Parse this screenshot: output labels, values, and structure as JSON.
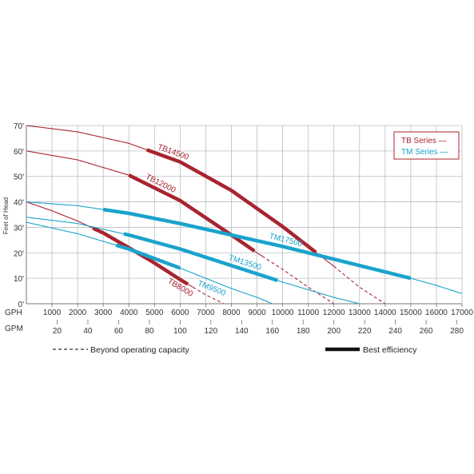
{
  "chart_data": {
    "type": "line",
    "xlabel": "GPH",
    "x2label": "GPM",
    "ylabel": "Feet of Head",
    "xlim": [
      0,
      17000
    ],
    "ylim": [
      0,
      70
    ],
    "x_ticks": [
      1000,
      2000,
      3000,
      4000,
      5000,
      6000,
      7000,
      8000,
      9000,
      10000,
      11000,
      12000,
      13000,
      14000,
      15000,
      16000,
      17000
    ],
    "x_tick_labels": [
      "1000",
      "2000",
      "3000",
      "4000",
      "5000",
      "6000",
      "7000",
      "8000",
      "9000",
      "10000",
      "11000",
      "12000",
      "13000",
      "14000",
      "15000",
      "16000",
      "17000"
    ],
    "gpm_ticks": [
      20,
      40,
      60,
      80,
      100,
      120,
      140,
      160,
      180,
      200,
      220,
      240,
      260,
      280
    ],
    "gpm_tick_labels": [
      "20",
      "40",
      "60",
      "80",
      "100",
      "120",
      "140",
      "160",
      "180",
      "200",
      "220",
      "240",
      "260",
      "280"
    ],
    "y_ticks": [
      0,
      10,
      20,
      30,
      40,
      50,
      60,
      70
    ],
    "y_tick_labels": [
      "0'",
      "10'",
      "20'",
      "30'",
      "40'",
      "50'",
      "60'",
      "70'"
    ],
    "grid": true,
    "legend_position": "top-right",
    "legend": [
      {
        "label": "TB Series —",
        "color": "#a8242f"
      },
      {
        "label": "TM Series —",
        "color": "#1aa3cc"
      }
    ],
    "footer_legend": [
      {
        "label": "Beyond operating capacity",
        "style": "dashed"
      },
      {
        "label": "Best efficiency",
        "style": "thick"
      }
    ],
    "series": [
      {
        "name": "TB14500",
        "group": "TB",
        "color": "#a8242f",
        "x": [
          0,
          2000,
          4000,
          6000,
          8000,
          10000,
          11000,
          12000,
          13000,
          14000
        ],
        "y": [
          70,
          67.5,
          63,
          55.7,
          44.5,
          30.3,
          22.5,
          14.7,
          6.5,
          0
        ],
        "operating_max": 12000,
        "best_efficiency": [
          4700,
          11300
        ]
      },
      {
        "name": "TB12000",
        "group": "TB",
        "color": "#a8242f",
        "x": [
          0,
          2000,
          4000,
          6000,
          8000,
          9000,
          10000,
          11000,
          12000
        ],
        "y": [
          60,
          56.5,
          50.5,
          40.5,
          27,
          20,
          13.5,
          6.5,
          0
        ],
        "operating_max": 9200,
        "best_efficiency": [
          4000,
          8900
        ]
      },
      {
        "name": "TB8000",
        "group": "TB",
        "color": "#a8242f",
        "x": [
          0,
          1000,
          2000,
          3000,
          4000,
          5000,
          6000,
          7000,
          7700
        ],
        "y": [
          40,
          36.5,
          32.5,
          27.8,
          22,
          16,
          9.5,
          3.5,
          0
        ],
        "operating_max": 6500,
        "best_efficiency": [
          2600,
          6300
        ]
      },
      {
        "name": "TM17500",
        "group": "TM",
        "color": "#1aa3cc",
        "x": [
          0,
          2000,
          4000,
          6000,
          8000,
          10000,
          12000,
          14000,
          15000,
          16000,
          17000
        ],
        "y": [
          40,
          38.5,
          35.5,
          31.5,
          27,
          22.5,
          17.5,
          12.5,
          10,
          7.2,
          4
        ],
        "best_efficiency": [
          3000,
          15000
        ]
      },
      {
        "name": "TM13500",
        "group": "TM",
        "color": "#1aa3cc",
        "x": [
          0,
          2000,
          4000,
          6000,
          8000,
          10000,
          12000,
          13000
        ],
        "y": [
          34,
          31.5,
          27,
          21.5,
          15,
          8.5,
          2.5,
          0
        ],
        "best_efficiency": [
          3800,
          9800
        ]
      },
      {
        "name": "TM9500",
        "group": "TM",
        "color": "#1aa3cc",
        "x": [
          0,
          2000,
          4000,
          6000,
          7000,
          8000,
          9000,
          9600
        ],
        "y": [
          32,
          27.5,
          21.5,
          14,
          10,
          6,
          2.5,
          0
        ],
        "best_efficiency": [
          3500,
          6000
        ]
      }
    ]
  }
}
